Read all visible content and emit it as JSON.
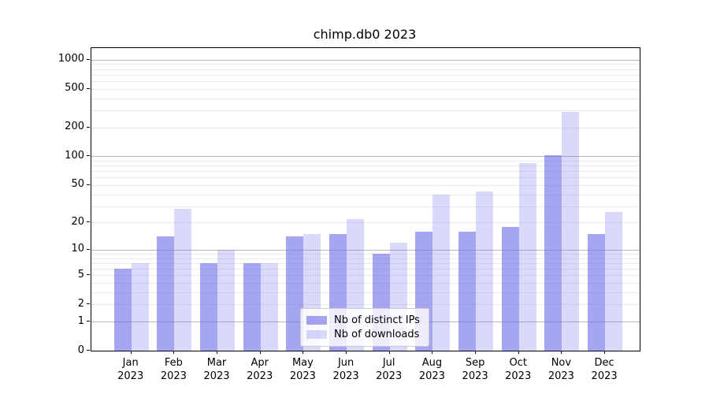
{
  "title": "chimp.db0 2023",
  "chart_data": {
    "type": "bar",
    "title": "chimp.db0 2023",
    "categories": [
      "Jan",
      "Feb",
      "Mar",
      "Apr",
      "May",
      "Jun",
      "Jul",
      "Aug",
      "Sep",
      "Oct",
      "Nov",
      "Dec"
    ],
    "year": "2023",
    "series": [
      {
        "name": "Nb of distinct IPs",
        "color": "rgba(105,105,230,0.6)",
        "values": [
          6,
          14,
          7,
          7,
          14,
          15,
          9,
          16,
          16,
          18,
          102,
          15
        ]
      },
      {
        "name": "Nb of downloads",
        "color": "rgba(105,105,230,0.25)",
        "values": [
          7,
          28,
          10,
          7,
          15,
          22,
          12,
          40,
          43,
          85,
          290,
          26
        ]
      }
    ],
    "yscale": "log1p",
    "ylim": [
      0,
      1320
    ],
    "ytick_labels": [
      0,
      1,
      2,
      5,
      10,
      20,
      50,
      100,
      200,
      500,
      1000
    ],
    "grid_major": [
      1,
      10,
      100,
      1000
    ],
    "grid_minor": [
      2,
      3,
      4,
      5,
      6,
      7,
      8,
      9,
      20,
      30,
      40,
      50,
      60,
      70,
      80,
      90,
      200,
      300,
      400,
      500,
      600,
      700,
      800,
      900
    ],
    "legend_position": "lower center",
    "colors": {
      "bar_distinct_ips": "rgba(105,105,230,0.6)",
      "bar_downloads": "rgba(105,105,230,0.25)",
      "grid_major": "#b9b9b9",
      "grid_minor": "#ebebeb",
      "spine": "#000000",
      "legend_border": "#cccccc"
    }
  }
}
